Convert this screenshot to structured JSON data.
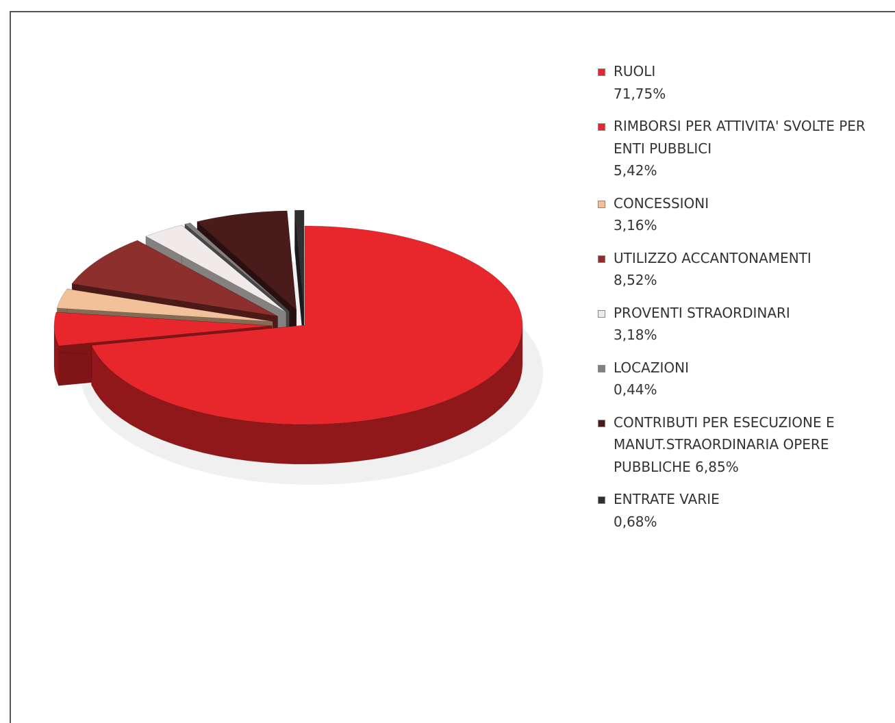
{
  "chart_data": {
    "type": "pie",
    "variant": "3d-exploded",
    "legend_position": "right",
    "slices": [
      {
        "label": "RUOLI",
        "percent_label": "71,75%",
        "value": 71.75,
        "color": "#e8272c"
      },
      {
        "label": "RIMBORSI PER ATTIVITA' SVOLTE PER ENTI PUBBLICI",
        "percent_label": "5,42%",
        "value": 5.42,
        "color": "#e8272c"
      },
      {
        "label": "CONCESSIONI",
        "percent_label": "3,16%",
        "value": 3.16,
        "color": "#f2c19a"
      },
      {
        "label": "UTILIZZO ACCANTONAMENTI",
        "percent_label": "8,52%",
        "value": 8.52,
        "color": "#8d2f2c"
      },
      {
        "label": "PROVENTI STRAORDINARI",
        "percent_label": "3,18%",
        "value": 3.18,
        "color": "#f1eaea"
      },
      {
        "label": "LOCAZIONI",
        "percent_label": "0,44%",
        "value": 0.44,
        "color": "#808080"
      },
      {
        "label": "CONTRIBUTI PER ESECUZIONE E MANUT.STRAORDINARIA OPERE PUBBLICHE",
        "percent_label": "6,85%",
        "value": 6.85,
        "color": "#4a1b1b"
      },
      {
        "label": "ENTRATE VARIE",
        "percent_label": "0,68%",
        "value": 0.68,
        "color": "#2f2f2f"
      }
    ],
    "legend_text": [
      "RUOLI\n71,75%",
      "RIMBORSI PER ATTIVITA' SVOLTE PER\nENTI PUBBLICI\n5,42%",
      "CONCESSIONI\n3,16%",
      "UTILIZZO ACCANTONAMENTI\n8,52%",
      "PROVENTI STRAORDINARI\n3,18%",
      "LOCAZIONI\n0,44%",
      "CONTRIBUTI PER ESECUZIONE E\nMANUT.STRAORDINARIA OPERE\nPUBBLICHE 6,85%",
      "ENTRATE VARIE\n0,68%"
    ]
  }
}
